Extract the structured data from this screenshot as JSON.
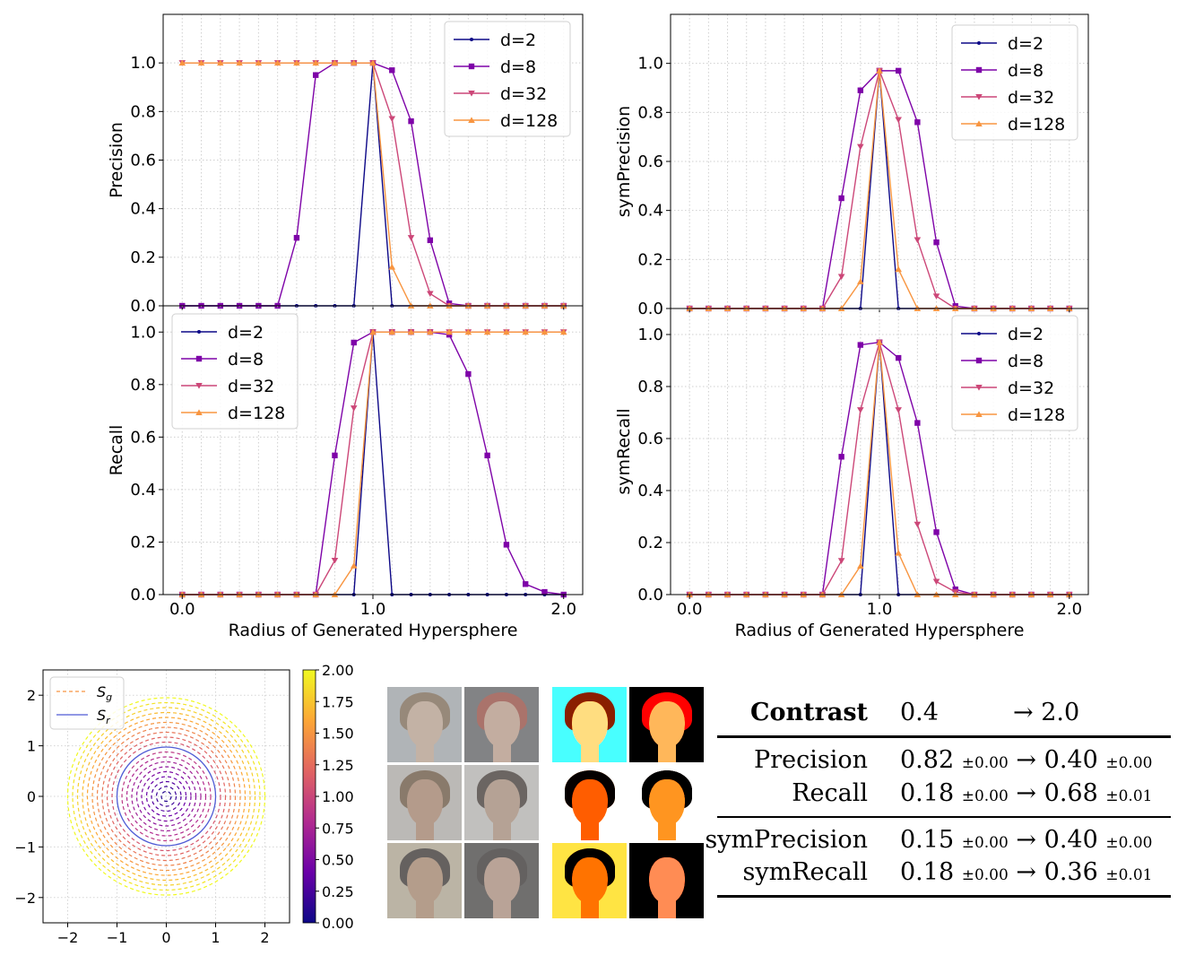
{
  "chart_data": [
    {
      "type": "line",
      "ylabel": "Precision",
      "xlabel": "",
      "xlim": [
        -0.1,
        2.1
      ],
      "ylim": [
        0,
        1.2
      ],
      "xticks": [
        "0.0",
        "1.0",
        "2.0"
      ],
      "yticks": [
        "0.0",
        "0.2",
        "0.4",
        "0.6",
        "0.8",
        "1.0"
      ],
      "legend_position": "top-right",
      "grid": true,
      "x": [
        0.0,
        0.1,
        0.2,
        0.3,
        0.4,
        0.5,
        0.6,
        0.7,
        0.8,
        0.9,
        1.0,
        1.1,
        1.2,
        1.3,
        1.4,
        1.5,
        1.6,
        1.7,
        1.8,
        1.9,
        2.0
      ],
      "series": [
        {
          "name": "d=2",
          "color": "#0d0887",
          "marker": "dot",
          "values": [
            0,
            0,
            0,
            0,
            0,
            0,
            0,
            0,
            0,
            0,
            1.0,
            0,
            0,
            0,
            0,
            0,
            0,
            0,
            0,
            0,
            0
          ]
        },
        {
          "name": "d=8",
          "color": "#7e03a8",
          "marker": "square",
          "values": [
            0,
            0,
            0,
            0,
            0,
            0,
            0.28,
            0.95,
            1.0,
            1.0,
            1.0,
            0.97,
            0.76,
            0.27,
            0.01,
            0,
            0,
            0,
            0,
            0,
            0
          ]
        },
        {
          "name": "d=32",
          "color": "#cc4778",
          "marker": "triangle-down",
          "values": [
            1.0,
            1.0,
            1.0,
            1.0,
            1.0,
            1.0,
            1.0,
            1.0,
            1.0,
            1.0,
            1.0,
            0.77,
            0.28,
            0.05,
            0,
            0,
            0,
            0,
            0,
            0,
            0
          ]
        },
        {
          "name": "d=128",
          "color": "#f89540",
          "marker": "triangle-up",
          "values": [
            1.0,
            1.0,
            1.0,
            1.0,
            1.0,
            1.0,
            1.0,
            1.0,
            1.0,
            1.0,
            1.0,
            0.16,
            0,
            0,
            0,
            0,
            0,
            0,
            0,
            0,
            0
          ]
        }
      ]
    },
    {
      "type": "line",
      "ylabel": "symPrecision",
      "xlabel": "",
      "xlim": [
        -0.1,
        2.1
      ],
      "ylim": [
        0,
        1.2
      ],
      "xticks": [
        "0.0",
        "1.0",
        "2.0"
      ],
      "yticks": [
        "0.0",
        "0.2",
        "0.4",
        "0.6",
        "0.8",
        "1.0"
      ],
      "legend_position": "top-right",
      "grid": true,
      "x": [
        0.0,
        0.1,
        0.2,
        0.3,
        0.4,
        0.5,
        0.6,
        0.7,
        0.8,
        0.9,
        1.0,
        1.1,
        1.2,
        1.3,
        1.4,
        1.5,
        1.6,
        1.7,
        1.8,
        1.9,
        2.0
      ],
      "series": [
        {
          "name": "d=2",
          "color": "#0d0887",
          "marker": "dot",
          "values": [
            0,
            0,
            0,
            0,
            0,
            0,
            0,
            0,
            0,
            0,
            0.97,
            0,
            0,
            0,
            0,
            0,
            0,
            0,
            0,
            0,
            0
          ]
        },
        {
          "name": "d=8",
          "color": "#7e03a8",
          "marker": "square",
          "values": [
            0,
            0,
            0,
            0,
            0,
            0,
            0,
            0,
            0.45,
            0.89,
            0.97,
            0.97,
            0.76,
            0.27,
            0.01,
            0,
            0,
            0,
            0,
            0,
            0
          ]
        },
        {
          "name": "d=32",
          "color": "#cc4778",
          "marker": "triangle-down",
          "values": [
            0,
            0,
            0,
            0,
            0,
            0,
            0,
            0,
            0.13,
            0.66,
            0.97,
            0.77,
            0.28,
            0.05,
            0,
            0,
            0,
            0,
            0,
            0,
            0
          ]
        },
        {
          "name": "d=128",
          "color": "#f89540",
          "marker": "triangle-up",
          "values": [
            0,
            0,
            0,
            0,
            0,
            0,
            0,
            0,
            0,
            0.11,
            0.97,
            0.16,
            0,
            0,
            0,
            0,
            0,
            0,
            0,
            0,
            0
          ]
        }
      ]
    },
    {
      "type": "line",
      "ylabel": "Recall",
      "xlabel": "Radius of Generated Hypersphere",
      "xlim": [
        -0.1,
        2.1
      ],
      "ylim": [
        0,
        1.1
      ],
      "xticks": [
        "0.0",
        "1.0",
        "2.0"
      ],
      "yticks": [
        "0.0",
        "0.2",
        "0.4",
        "0.6",
        "0.8",
        "1.0"
      ],
      "legend_position": "top-left",
      "grid": true,
      "x": [
        0.0,
        0.1,
        0.2,
        0.3,
        0.4,
        0.5,
        0.6,
        0.7,
        0.8,
        0.9,
        1.0,
        1.1,
        1.2,
        1.3,
        1.4,
        1.5,
        1.6,
        1.7,
        1.8,
        1.9,
        2.0
      ],
      "series": [
        {
          "name": "d=2",
          "color": "#0d0887",
          "marker": "dot",
          "values": [
            0,
            0,
            0,
            0,
            0,
            0,
            0,
            0,
            0,
            0,
            1.0,
            0,
            0,
            0,
            0,
            0,
            0,
            0,
            0,
            0,
            0
          ]
        },
        {
          "name": "d=8",
          "color": "#7e03a8",
          "marker": "square",
          "values": [
            0,
            0,
            0,
            0,
            0,
            0,
            0,
            0,
            0.53,
            0.96,
            1.0,
            1.0,
            1.0,
            1.0,
            0.99,
            0.84,
            0.53,
            0.19,
            0.04,
            0.01,
            0
          ]
        },
        {
          "name": "d=32",
          "color": "#cc4778",
          "marker": "triangle-down",
          "values": [
            0,
            0,
            0,
            0,
            0,
            0,
            0,
            0,
            0.13,
            0.71,
            1.0,
            1.0,
            1.0,
            1.0,
            1.0,
            1.0,
            1.0,
            1.0,
            1.0,
            1.0,
            1.0
          ]
        },
        {
          "name": "d=128",
          "color": "#f89540",
          "marker": "triangle-up",
          "values": [
            0,
            0,
            0,
            0,
            0,
            0,
            0,
            0,
            0,
            0.11,
            1.0,
            1.0,
            1.0,
            1.0,
            1.0,
            1.0,
            1.0,
            1.0,
            1.0,
            1.0,
            1.0
          ]
        }
      ]
    },
    {
      "type": "line",
      "ylabel": "symRecall",
      "xlabel": "Radius of Generated Hypersphere",
      "xlim": [
        -0.1,
        2.1
      ],
      "ylim": [
        0,
        1.1
      ],
      "xticks": [
        "0.0",
        "1.0",
        "2.0"
      ],
      "yticks": [
        "0.0",
        "0.2",
        "0.4",
        "0.6",
        "0.8",
        "1.0"
      ],
      "legend_position": "top-right",
      "grid": true,
      "x": [
        0.0,
        0.1,
        0.2,
        0.3,
        0.4,
        0.5,
        0.6,
        0.7,
        0.8,
        0.9,
        1.0,
        1.1,
        1.2,
        1.3,
        1.4,
        1.5,
        1.6,
        1.7,
        1.8,
        1.9,
        2.0
      ],
      "series": [
        {
          "name": "d=2",
          "color": "#0d0887",
          "marker": "dot",
          "values": [
            0,
            0,
            0,
            0,
            0,
            0,
            0,
            0,
            0,
            0,
            0.97,
            0,
            0,
            0,
            0,
            0,
            0,
            0,
            0,
            0,
            0
          ]
        },
        {
          "name": "d=8",
          "color": "#7e03a8",
          "marker": "square",
          "values": [
            0,
            0,
            0,
            0,
            0,
            0,
            0,
            0,
            0.53,
            0.96,
            0.97,
            0.91,
            0.66,
            0.24,
            0.02,
            0,
            0,
            0,
            0,
            0,
            0
          ]
        },
        {
          "name": "d=32",
          "color": "#cc4778",
          "marker": "triangle-down",
          "values": [
            0,
            0,
            0,
            0,
            0,
            0,
            0,
            0,
            0.13,
            0.71,
            0.97,
            0.71,
            0.27,
            0.05,
            0.01,
            0,
            0,
            0,
            0,
            0,
            0
          ]
        },
        {
          "name": "d=128",
          "color": "#f89540",
          "marker": "triangle-up",
          "values": [
            0,
            0,
            0,
            0,
            0,
            0,
            0,
            0,
            0,
            0.11,
            0.97,
            0.16,
            0,
            0,
            0,
            0,
            0,
            0,
            0,
            0,
            0
          ]
        }
      ]
    },
    {
      "type": "scatter",
      "xlim": [
        -2.5,
        2.5
      ],
      "ylim": [
        -2.5,
        2.5
      ],
      "xticks": [
        "−2",
        "−1",
        "0",
        "1",
        "2"
      ],
      "yticks": [
        "−2",
        "−1",
        "0",
        "1",
        "2"
      ],
      "grid": true,
      "legend_position": "top-left",
      "legend": [
        {
          "label_base": "S",
          "label_sub": "g",
          "style": "dashed",
          "color": "#f89540"
        },
        {
          "label_base": "S",
          "label_sub": "r",
          "style": "solid",
          "color": "#4f5bd5"
        }
      ],
      "real_radius": 1.0,
      "generated_radii": [
        0.1,
        0.2,
        0.3,
        0.4,
        0.5,
        0.6,
        0.7,
        0.8,
        0.9,
        1.1,
        1.2,
        1.3,
        1.4,
        1.5,
        1.6,
        1.7,
        1.8,
        1.9,
        2.0
      ],
      "colorbar": {
        "range": [
          0,
          2
        ],
        "ticks": [
          "0.00",
          "0.25",
          "0.50",
          "0.75",
          "1.00",
          "1.25",
          "1.50",
          "1.75",
          "2.00"
        ],
        "colormap": [
          "#0d0887",
          "#6a00a8",
          "#b12a90",
          "#e16462",
          "#fca636",
          "#f0f921"
        ]
      }
    }
  ],
  "faces": {
    "low_contrast": [
      {
        "hair": "#8a6a4a",
        "skin": "#e8c4a8",
        "bg": "#bfc7cf"
      },
      {
        "hair": "#b33a2a",
        "skin": "#e9b99c",
        "bg": "#5b5d62"
      },
      {
        "hair": "#6b4a2a",
        "skin": "#c9926f",
        "bg": "#d7d2cc"
      },
      {
        "hair": "#2a1d16",
        "skin": "#caa084",
        "bg": "#e4e2de"
      },
      {
        "hair": "#1c1410",
        "skin": "#c8956e",
        "bg": "#d8c7a8"
      },
      {
        "hair": "#1a1412",
        "skin": "#d3a388",
        "bg": "#343230"
      }
    ],
    "high_contrast": [
      {
        "hair": "#7a4c22",
        "skin": "#f2b48c",
        "bg": "#74c9e8"
      },
      {
        "hair": "#c0180c",
        "skin": "#f0a078",
        "bg": "#1b1b1f"
      },
      {
        "hair": "#3b220d",
        "skin": "#b8703e",
        "bg": "#f2efea"
      },
      {
        "hair": "#0f0806",
        "skin": "#d58e5c",
        "bg": "#fbfbfb"
      },
      {
        "hair": "#0a0604",
        "skin": "#c37c44",
        "bg": "#e2b772"
      },
      {
        "hair": "#0a0604",
        "skin": "#e38a72",
        "bg": "#0d0b0a"
      }
    ]
  },
  "table": {
    "header": {
      "label": "Contrast",
      "from": "0.4",
      "to": "→ 2.0"
    },
    "rows": [
      {
        "label": "Precision",
        "from": "0.82",
        "from_pm": "±0.00",
        "arrow": "→",
        "to": "0.40",
        "to_pm": "±0.00"
      },
      {
        "label": "Recall",
        "from": "0.18",
        "from_pm": "±0.00",
        "arrow": "→",
        "to": "0.68",
        "to_pm": "±0.01"
      },
      {
        "label": "symPrecision",
        "from": "0.15",
        "from_pm": "±0.00",
        "arrow": "→",
        "to": "0.40",
        "to_pm": "±0.00"
      },
      {
        "label": "symRecall",
        "from": "0.18",
        "from_pm": "±0.00",
        "arrow": "→",
        "to": "0.36",
        "to_pm": "±0.01"
      }
    ]
  }
}
